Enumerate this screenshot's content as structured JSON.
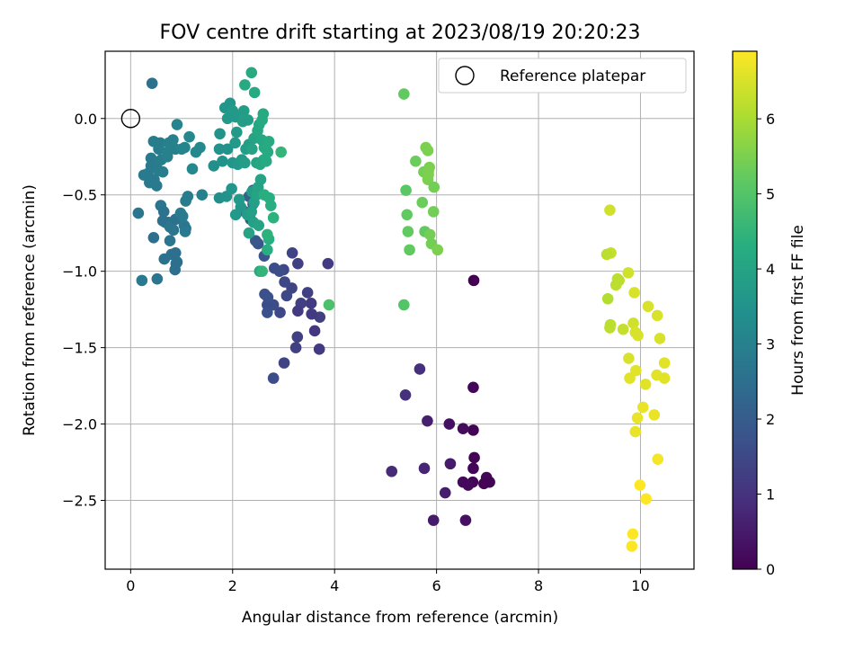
{
  "chart_data": {
    "type": "scatter",
    "title": "FOV centre drift starting at 2023/08/19 20:20:23",
    "xlabel": "Angular distance from reference (arcmin)",
    "ylabel": "Rotation from reference (arcmin)",
    "xlim": [
      -0.5,
      11.05
    ],
    "ylim": [
      -2.95,
      0.44
    ],
    "xticks": [
      0,
      2,
      4,
      6,
      8,
      10
    ],
    "yticks": [
      0.0,
      -0.5,
      -1.0,
      -1.5,
      -2.0,
      -2.5
    ],
    "ytick_labels": [
      "0.0",
      "−0.5",
      "−1.0",
      "−1.5",
      "−2.0",
      "−2.5"
    ],
    "grid": true,
    "legend": {
      "placement": "top-right",
      "entries": [
        {
          "label": "Reference platepar",
          "marker": "open-circle",
          "x": 0,
          "y": 0
        }
      ]
    },
    "colorbar": {
      "label": "Hours from first FF file",
      "range": [
        0,
        6.9
      ],
      "ticks": [
        0,
        1,
        2,
        3,
        4,
        5,
        6
      ],
      "colormap": "viridis"
    },
    "series": [
      {
        "points": [
          [
            6.73,
            -1.06,
            0.0
          ],
          [
            6.72,
            -1.76,
            0.1
          ],
          [
            6.72,
            -2.04,
            0.05
          ],
          [
            6.74,
            -2.22,
            0.05
          ],
          [
            6.72,
            -2.29,
            0.08
          ],
          [
            6.98,
            -2.35,
            0.1
          ],
          [
            6.93,
            -2.39,
            0.05
          ],
          [
            7.04,
            -2.38,
            0.05
          ],
          [
            6.71,
            -2.38,
            0.1
          ],
          [
            6.52,
            -2.38,
            0.15
          ],
          [
            6.62,
            -2.4,
            0.15
          ],
          [
            6.52,
            -2.03,
            0.2
          ],
          [
            6.25,
            -2.0,
            0.3
          ],
          [
            6.57,
            -2.63,
            0.3
          ],
          [
            5.94,
            -2.63,
            0.5
          ],
          [
            6.17,
            -2.45,
            0.55
          ],
          [
            6.27,
            -2.26,
            0.5
          ],
          [
            5.82,
            -1.98,
            0.6
          ],
          [
            5.76,
            -2.29,
            0.7
          ],
          [
            5.67,
            -1.64,
            0.9
          ],
          [
            5.12,
            -2.31,
            0.8
          ],
          [
            5.39,
            -1.81,
            0.95
          ],
          [
            3.87,
            -0.95,
            1.2
          ],
          [
            3.71,
            -1.3,
            1.3
          ],
          [
            3.7,
            -1.51,
            1.2
          ],
          [
            3.61,
            -1.39,
            1.1
          ],
          [
            3.47,
            -1.14,
            1.3
          ],
          [
            3.54,
            -1.21,
            1.2
          ],
          [
            3.55,
            -1.28,
            1.2
          ],
          [
            3.34,
            -1.21,
            1.3
          ],
          [
            3.28,
            -1.26,
            1.2
          ],
          [
            3.16,
            -1.11,
            1.4
          ],
          [
            3.17,
            -0.88,
            1.4
          ],
          [
            3.28,
            -0.95,
            1.3
          ],
          [
            3.27,
            -1.43,
            1.3
          ],
          [
            3.24,
            -1.5,
            1.3
          ],
          [
            3.01,
            -1.6,
            1.4
          ],
          [
            3.06,
            -1.16,
            1.5
          ],
          [
            3.02,
            -1.07,
            1.5
          ],
          [
            3.0,
            -0.99,
            1.5
          ],
          [
            2.92,
            -1.0,
            1.6
          ],
          [
            2.93,
            -1.27,
            1.5
          ],
          [
            2.82,
            -0.98,
            1.6
          ],
          [
            2.8,
            -1.22,
            1.6
          ],
          [
            2.68,
            -1.22,
            1.6
          ],
          [
            2.69,
            -1.17,
            1.7
          ],
          [
            2.68,
            -1.27,
            1.7
          ],
          [
            2.63,
            -1.15,
            1.7
          ],
          [
            2.8,
            -1.7,
            1.6
          ],
          [
            2.62,
            -0.9,
            1.8
          ],
          [
            2.5,
            -0.82,
            1.8
          ],
          [
            2.45,
            -0.8,
            1.9
          ],
          [
            2.4,
            -0.56,
            1.9
          ],
          [
            2.35,
            -0.66,
            2.0
          ],
          [
            2.4,
            -0.47,
            2.0
          ],
          [
            2.24,
            -0.61,
            2.1
          ],
          [
            2.32,
            -0.51,
            2.1
          ],
          [
            0.15,
            -0.62,
            2.7
          ],
          [
            0.22,
            -1.06,
            2.8
          ],
          [
            0.42,
            0.23,
            2.6
          ],
          [
            0.52,
            -1.05,
            2.7
          ],
          [
            0.45,
            -0.78,
            2.5
          ],
          [
            0.4,
            -0.26,
            2.8
          ],
          [
            0.37,
            -0.42,
            2.8
          ],
          [
            0.46,
            -0.4,
            2.8
          ],
          [
            0.51,
            -0.44,
            2.8
          ],
          [
            0.26,
            -0.37,
            2.8
          ],
          [
            0.34,
            -0.36,
            2.8
          ],
          [
            0.4,
            -0.31,
            2.8
          ],
          [
            0.5,
            -0.3,
            2.8
          ],
          [
            0.55,
            -0.34,
            2.9
          ],
          [
            0.55,
            -0.2,
            2.9
          ],
          [
            0.45,
            -0.15,
            2.9
          ],
          [
            0.58,
            -0.16,
            2.9
          ],
          [
            0.6,
            -0.27,
            2.9
          ],
          [
            0.63,
            -0.35,
            2.9
          ],
          [
            0.59,
            -0.57,
            2.7
          ],
          [
            0.65,
            -0.61,
            2.6
          ],
          [
            0.68,
            -0.68,
            2.5
          ],
          [
            0.63,
            -0.67,
            2.6
          ],
          [
            0.74,
            -0.68,
            2.6
          ],
          [
            0.66,
            -0.92,
            2.6
          ],
          [
            0.77,
            -0.8,
            2.7
          ],
          [
            0.77,
            -0.71,
            2.7
          ],
          [
            0.84,
            -0.73,
            2.7
          ],
          [
            0.88,
            -0.66,
            2.6
          ],
          [
            0.8,
            -0.89,
            2.6
          ],
          [
            0.87,
            -0.99,
            2.5
          ],
          [
            0.88,
            -0.88,
            2.5
          ],
          [
            0.91,
            -0.94,
            2.5
          ],
          [
            0.89,
            -0.95,
            2.5
          ],
          [
            0.75,
            -0.16,
            3.0
          ],
          [
            0.83,
            -0.14,
            3.0
          ],
          [
            0.79,
            -0.2,
            3.0
          ],
          [
            0.88,
            -0.2,
            3.0
          ],
          [
            0.72,
            -0.22,
            3.0
          ],
          [
            0.72,
            -0.25,
            3.0
          ],
          [
            0.91,
            -0.04,
            3.1
          ],
          [
            0.98,
            -0.62,
            2.9
          ],
          [
            1.02,
            -0.64,
            2.8
          ],
          [
            1.05,
            -0.7,
            2.8
          ],
          [
            1.08,
            -0.72,
            2.7
          ],
          [
            1.07,
            -0.74,
            2.8
          ],
          [
            1.06,
            -0.19,
            3.1
          ],
          [
            1.15,
            -0.12,
            3.2
          ],
          [
            1.08,
            -0.54,
            2.9
          ],
          [
            1.12,
            -0.51,
            2.9
          ],
          [
            1.36,
            -0.19,
            3.2
          ],
          [
            1.28,
            -0.22,
            3.2
          ],
          [
            1.21,
            -0.33,
            3.2
          ],
          [
            1.4,
            -0.5,
            3.0
          ],
          [
            1.0,
            -0.2,
            3.1
          ],
          [
            1.63,
            -0.31,
            3.4
          ],
          [
            1.74,
            -0.2,
            3.5
          ],
          [
            1.8,
            -0.28,
            3.5
          ],
          [
            1.9,
            -0.2,
            3.5
          ],
          [
            1.75,
            -0.1,
            3.5
          ],
          [
            1.74,
            -0.52,
            3.4
          ],
          [
            1.88,
            -0.51,
            3.5
          ],
          [
            1.85,
            0.07,
            3.6
          ],
          [
            1.95,
            0.1,
            3.6
          ],
          [
            2.0,
            0.05,
            3.7
          ],
          [
            2.06,
            0.01,
            3.7
          ],
          [
            1.9,
            0.0,
            3.7
          ],
          [
            2.05,
            -0.16,
            3.7
          ],
          [
            2.08,
            -0.09,
            3.7
          ],
          [
            2.2,
            -0.02,
            3.8
          ],
          [
            2.22,
            0.05,
            3.8
          ],
          [
            2.3,
            -0.01,
            3.8
          ],
          [
            2.0,
            -0.29,
            3.6
          ],
          [
            2.1,
            -0.3,
            3.7
          ],
          [
            2.18,
            -0.27,
            3.7
          ],
          [
            2.24,
            -0.29,
            3.8
          ],
          [
            2.26,
            -0.2,
            3.8
          ],
          [
            2.32,
            -0.17,
            3.8
          ],
          [
            1.98,
            -0.46,
            3.6
          ],
          [
            2.16,
            -0.58,
            3.6
          ],
          [
            2.06,
            -0.63,
            3.7
          ],
          [
            2.13,
            -0.53,
            3.7
          ],
          [
            2.29,
            -0.63,
            3.8
          ],
          [
            2.38,
            -0.48,
            3.8
          ],
          [
            2.42,
            -0.55,
            3.9
          ],
          [
            2.37,
            -0.61,
            3.9
          ],
          [
            2.41,
            -0.68,
            3.9
          ],
          [
            2.5,
            -0.45,
            4.0
          ],
          [
            2.47,
            -0.5,
            4.0
          ],
          [
            2.55,
            -0.4,
            4.0
          ],
          [
            2.47,
            -0.29,
            4.0
          ],
          [
            2.42,
            -0.13,
            4.0
          ],
          [
            2.52,
            -0.04,
            4.1
          ],
          [
            2.49,
            -0.08,
            4.1
          ],
          [
            2.38,
            -0.2,
            4.0
          ],
          [
            2.57,
            -0.14,
            4.1
          ],
          [
            2.62,
            -0.19,
            4.1
          ],
          [
            2.61,
            -0.27,
            4.2
          ],
          [
            2.65,
            -0.2,
            4.2
          ],
          [
            2.69,
            -0.22,
            4.2
          ],
          [
            2.71,
            -0.15,
            4.2
          ],
          [
            2.58,
            -0.01,
            4.2
          ],
          [
            2.6,
            0.03,
            4.2
          ],
          [
            2.37,
            0.3,
            4.2
          ],
          [
            2.24,
            0.22,
            4.2
          ],
          [
            2.43,
            0.17,
            4.2
          ],
          [
            2.54,
            -0.3,
            4.1
          ],
          [
            2.66,
            -0.28,
            4.2
          ],
          [
            2.53,
            -1.0,
            4.2
          ],
          [
            2.32,
            -0.75,
            4.0
          ],
          [
            2.51,
            -0.7,
            4.0
          ],
          [
            2.62,
            -0.5,
            4.3
          ],
          [
            2.72,
            -0.52,
            4.3
          ],
          [
            2.75,
            -0.57,
            4.3
          ],
          [
            2.8,
            -0.65,
            4.4
          ],
          [
            2.71,
            -0.79,
            4.3
          ],
          [
            2.68,
            -0.86,
            4.3
          ],
          [
            2.68,
            -0.76,
            4.4
          ],
          [
            2.95,
            -0.22,
            4.5
          ],
          [
            2.58,
            -1.0,
            4.5
          ],
          [
            3.89,
            -1.22,
            4.9
          ],
          [
            5.36,
            0.16,
            5.2
          ],
          [
            5.4,
            -0.47,
            5.1
          ],
          [
            5.42,
            -0.63,
            5.2
          ],
          [
            5.44,
            -0.74,
            5.2
          ],
          [
            5.47,
            -0.86,
            5.2
          ],
          [
            5.36,
            -1.22,
            5.0
          ],
          [
            5.59,
            -0.28,
            5.3
          ],
          [
            5.72,
            -0.55,
            5.3
          ],
          [
            5.75,
            -0.35,
            5.4
          ],
          [
            5.77,
            -0.74,
            5.2
          ],
          [
            5.79,
            -0.19,
            5.5
          ],
          [
            5.83,
            -0.21,
            5.5
          ],
          [
            5.86,
            -0.32,
            5.5
          ],
          [
            5.84,
            -0.35,
            5.5
          ],
          [
            5.84,
            -0.37,
            5.5
          ],
          [
            5.83,
            -0.4,
            5.5
          ],
          [
            5.87,
            -0.76,
            5.4
          ],
          [
            5.9,
            -0.82,
            5.4
          ],
          [
            5.94,
            -0.61,
            5.4
          ],
          [
            5.95,
            -0.45,
            5.4
          ],
          [
            6.02,
            -0.86,
            5.5
          ],
          [
            9.4,
            -0.6,
            6.4
          ],
          [
            9.42,
            -0.88,
            6.3
          ],
          [
            9.34,
            -0.89,
            6.2
          ],
          [
            9.52,
            -1.09,
            6.2
          ],
          [
            9.55,
            -1.05,
            6.2
          ],
          [
            9.58,
            -1.06,
            6.2
          ],
          [
            9.36,
            -1.18,
            6.1
          ],
          [
            9.4,
            -1.37,
            6.2
          ],
          [
            9.41,
            -1.35,
            6.2
          ],
          [
            9.66,
            -1.38,
            6.3
          ],
          [
            9.76,
            -1.01,
            6.4
          ],
          [
            9.88,
            -1.14,
            6.5
          ],
          [
            9.86,
            -1.34,
            6.4
          ],
          [
            9.9,
            -1.4,
            6.5
          ],
          [
            9.95,
            -1.42,
            6.5
          ],
          [
            9.77,
            -1.57,
            6.5
          ],
          [
            9.79,
            -1.7,
            6.6
          ],
          [
            9.91,
            -1.65,
            6.6
          ],
          [
            10.05,
            -1.89,
            6.7
          ],
          [
            10.1,
            -1.74,
            6.6
          ],
          [
            9.94,
            -1.96,
            6.7
          ],
          [
            9.9,
            -2.05,
            6.7
          ],
          [
            10.15,
            -1.23,
            6.5
          ],
          [
            10.33,
            -1.29,
            6.5
          ],
          [
            10.38,
            -1.44,
            6.5
          ],
          [
            10.47,
            -1.6,
            6.6
          ],
          [
            10.47,
            -1.7,
            6.6
          ],
          [
            10.32,
            -1.68,
            6.6
          ],
          [
            10.27,
            -1.94,
            6.7
          ],
          [
            10.34,
            -2.23,
            6.8
          ],
          [
            9.99,
            -2.4,
            6.9
          ],
          [
            10.11,
            -2.49,
            6.9
          ],
          [
            9.85,
            -2.72,
            6.9
          ],
          [
            9.83,
            -2.8,
            6.9
          ]
        ]
      }
    ]
  }
}
